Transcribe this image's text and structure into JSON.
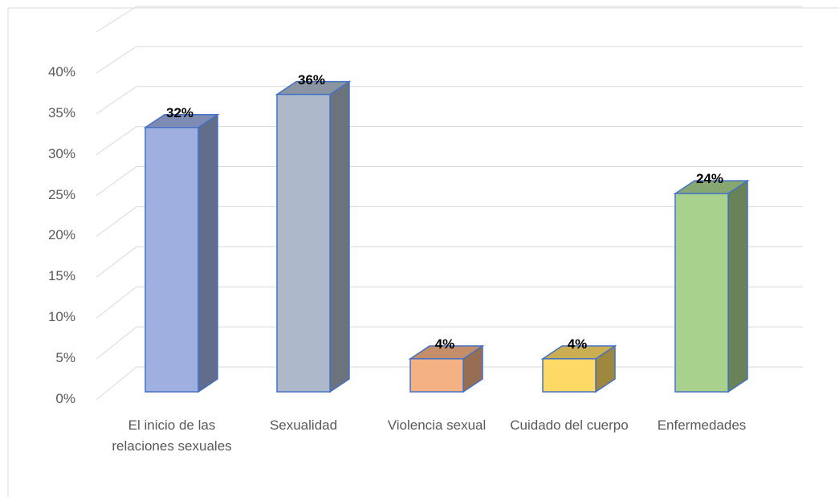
{
  "chart_data": {
    "type": "bar3d",
    "categories": [
      "El inicio de las relaciones sexuales",
      "Sexualidad",
      "Violencia sexual",
      "Cuidado del cuerpo",
      "Enfermedades"
    ],
    "values": [
      32,
      36,
      4,
      4,
      24
    ],
    "value_labels": [
      "32%",
      "36%",
      "4%",
      "4%",
      "24%"
    ],
    "colors": [
      "#9eafe0",
      "#adb9ca",
      "#f4b183",
      "#ffd966",
      "#a9d18e"
    ],
    "ylim": [
      0,
      45
    ],
    "yticks": [
      {
        "value": 0,
        "label": "0%"
      },
      {
        "value": 5,
        "label": "5%"
      },
      {
        "value": 10,
        "label": "10%"
      },
      {
        "value": 15,
        "label": "15%"
      },
      {
        "value": 20,
        "label": "20%"
      },
      {
        "value": 25,
        "label": "25%"
      },
      {
        "value": 30,
        "label": "30%"
      },
      {
        "value": 35,
        "label": "35%"
      },
      {
        "value": 40,
        "label": "40%"
      }
    ],
    "grid": true
  }
}
